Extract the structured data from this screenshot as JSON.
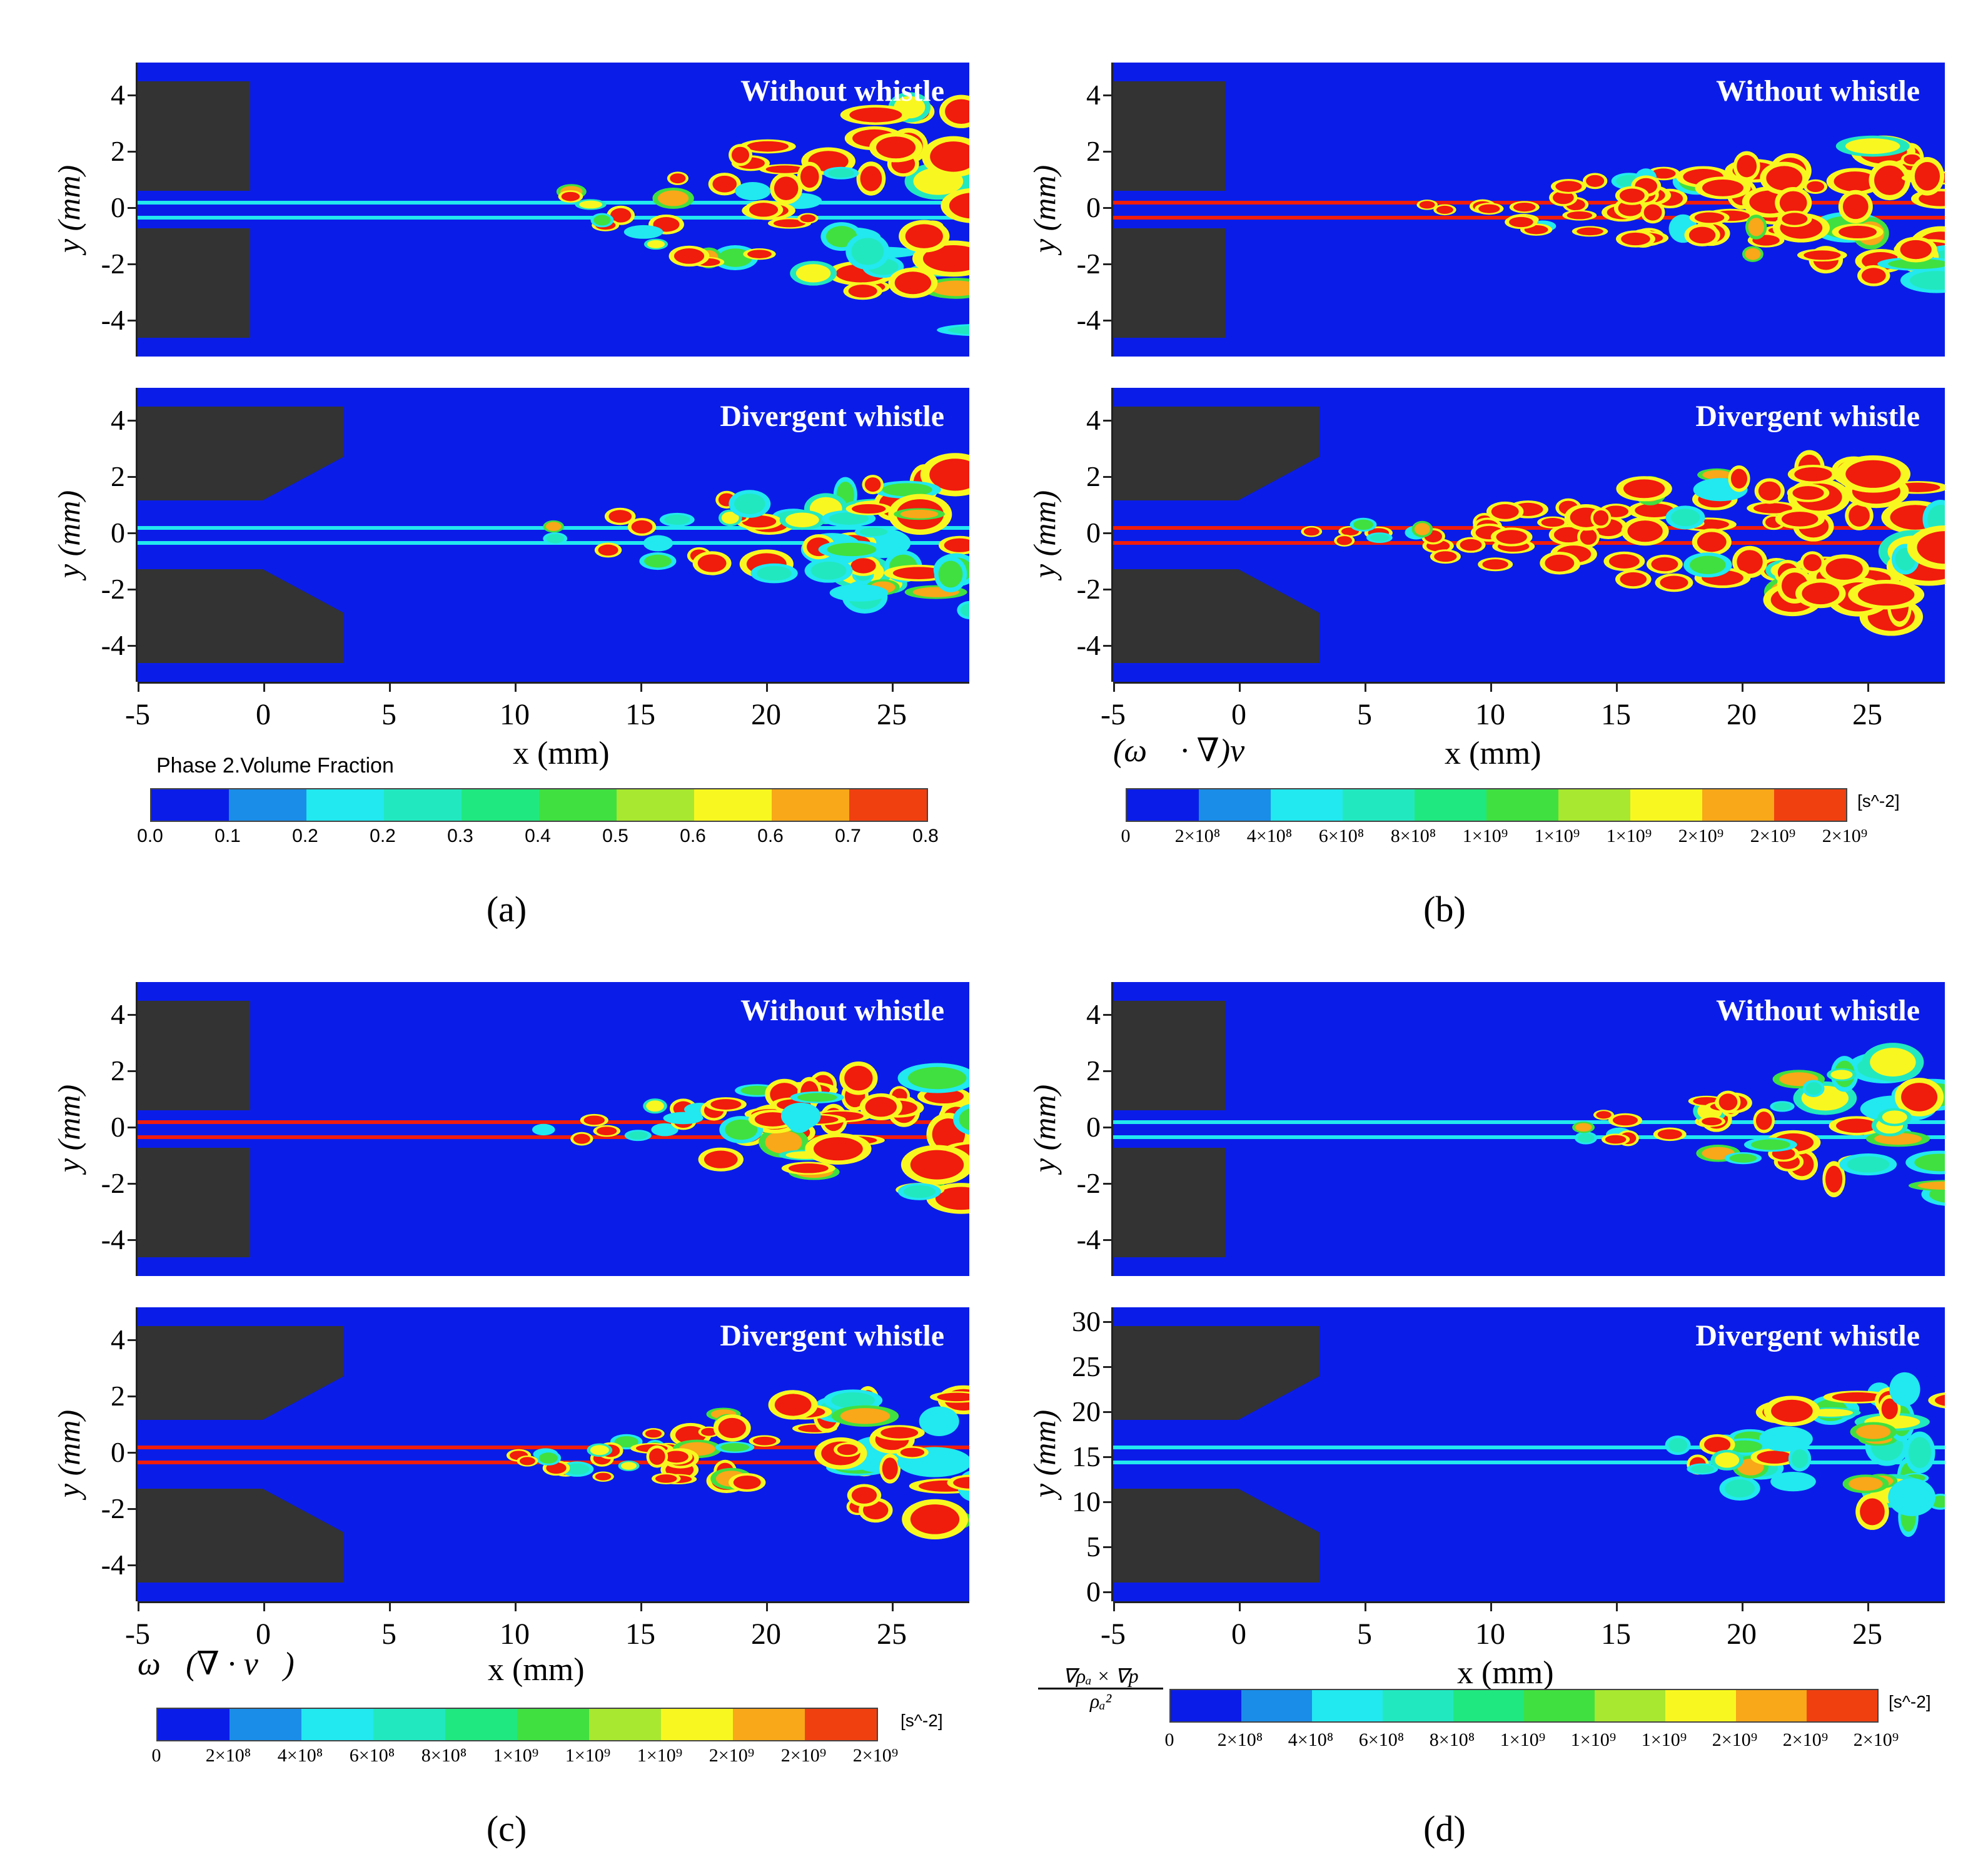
{
  "panels": [
    {
      "id": "a",
      "label": "(a)",
      "top_title": "Without whistle",
      "bottom_title": "Divergent whistle",
      "y_label": "y (mm)",
      "y_ticks": [
        "4",
        "2",
        "0",
        "-2",
        "-4"
      ],
      "x_label": "x (mm)",
      "x_ticks": [
        "-5",
        "0",
        "5",
        "10",
        "15",
        "20",
        "25"
      ],
      "colorbar_title": "Phase 2.Volume Fraction",
      "colorbar_formula": "",
      "colorbar_unit": "",
      "colorbar_ticks": [
        "0.0",
        "0.1",
        "0.2",
        "0.2",
        "0.3",
        "0.4",
        "0.5",
        "0.6",
        "0.6",
        "0.7",
        "0.8"
      ]
    },
    {
      "id": "b",
      "label": "(b)",
      "top_title": "Without whistle",
      "bottom_title": "Divergent whistle",
      "y_label": "y (mm)",
      "y_ticks": [
        "4",
        "2",
        "0",
        "-2",
        "-4"
      ],
      "x_label": "x (mm)",
      "x_ticks": [
        "-5",
        "0",
        "5",
        "10",
        "15",
        "20",
        "25"
      ],
      "colorbar_title": "",
      "colorbar_formula": "(ω⃗ · ∇)v⃗",
      "colorbar_unit": "[s^-2]",
      "colorbar_ticks": [
        "0",
        "2×10⁸",
        "4×10⁸",
        "6×10⁸",
        "8×10⁸",
        "1×10⁹",
        "1×10⁹",
        "1×10⁹",
        "2×10⁹",
        "2×10⁹",
        "2×10⁹"
      ]
    },
    {
      "id": "c",
      "label": "(c)",
      "top_title": "Without whistle",
      "bottom_title": "Divergent whistle",
      "y_label": "y (mm)",
      "y_ticks": [
        "4",
        "2",
        "0",
        "-2",
        "-4"
      ],
      "x_label": "x (mm)",
      "x_ticks": [
        "-5",
        "0",
        "5",
        "10",
        "15",
        "20",
        "25"
      ],
      "colorbar_title": "",
      "colorbar_formula": "ω⃗(∇ · v⃗)",
      "colorbar_unit": "[s^-2]",
      "colorbar_ticks": [
        "0",
        "2×10⁸",
        "4×10⁸",
        "6×10⁸",
        "8×10⁸",
        "1×10⁹",
        "1×10⁹",
        "1×10⁹",
        "2×10⁹",
        "2×10⁹",
        "2×10⁹"
      ]
    },
    {
      "id": "d",
      "label": "(d)",
      "top_title": "Without whistle",
      "bottom_title": "Divergent whistle",
      "y_label": "y (mm)",
      "y_ticks": [
        "4",
        "2",
        "0",
        "-2",
        "-4"
      ],
      "y_ticks_bottom": [
        "30",
        "25",
        "20",
        "15",
        "10",
        "5",
        "0"
      ],
      "x_label": "x (mm)",
      "x_ticks": [
        "-5",
        "0",
        "5",
        "10",
        "15",
        "20",
        "25"
      ],
      "colorbar_title": "",
      "colorbar_formula_num": "∇ρₐ × ∇p",
      "colorbar_formula_den": "ρₐ²",
      "colorbar_unit": "[s^-2]",
      "colorbar_ticks": [
        "0",
        "2×10⁸",
        "4×10⁸",
        "6×10⁸",
        "8×10⁸",
        "1×10⁹",
        "1×10⁹",
        "1×10⁹",
        "2×10⁹",
        "2×10⁹",
        "2×10⁹"
      ]
    }
  ],
  "colormap": [
    "#0a1de8",
    "#1a8de8",
    "#22e8f0",
    "#22e8c0",
    "#20e880",
    "#40e040",
    "#a8e830",
    "#f8f820",
    "#f8a818",
    "#f04010",
    "#f02010"
  ],
  "colors": {
    "background": "#0a1de8",
    "nozzle": "#333333",
    "jet_hot": "#f01c0c",
    "jet_mid": "#f8f820",
    "jet_cool": "#22e8f0"
  }
}
